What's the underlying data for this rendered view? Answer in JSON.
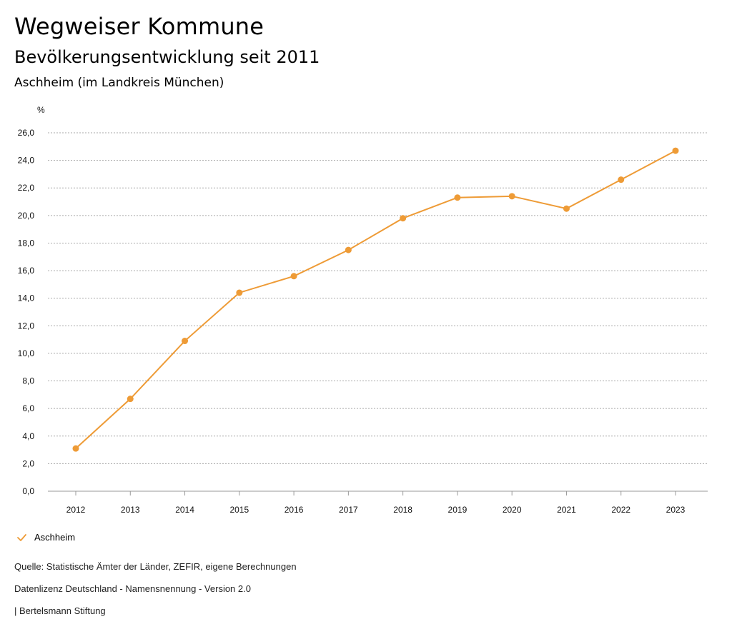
{
  "header": {
    "title": "Wegweiser Kommune",
    "subtitle": "Bevölkerungsentwicklung seit 2011",
    "region": "Aschheim (im Landkreis München)"
  },
  "chart_data": {
    "type": "line",
    "unit_label": "%",
    "x": [
      "2012",
      "2013",
      "2014",
      "2015",
      "2016",
      "2017",
      "2018",
      "2019",
      "2020",
      "2021",
      "2022",
      "2023"
    ],
    "series": [
      {
        "name": "Aschheim",
        "color": "#ee9b36",
        "values": [
          3.1,
          6.7,
          10.9,
          14.4,
          15.6,
          17.5,
          19.8,
          21.3,
          21.4,
          20.5,
          22.6,
          24.7
        ]
      }
    ],
    "y_ticks": [
      "0,0",
      "2,0",
      "4,0",
      "6,0",
      "8,0",
      "10,0",
      "12,0",
      "14,0",
      "16,0",
      "18,0",
      "20,0",
      "22,0",
      "24,0",
      "26,0"
    ],
    "ylim": [
      0,
      26
    ],
    "grid": true,
    "grid_style": "dotted",
    "legend_position": "bottom-left"
  },
  "footer": {
    "source": "Quelle: Statistische Ämter der Länder, ZEFIR, eigene Berechnungen",
    "license": "Datenlizenz Deutschland - Namensnennung - Version 2.0",
    "publisher": "| Bertelsmann Stiftung"
  }
}
